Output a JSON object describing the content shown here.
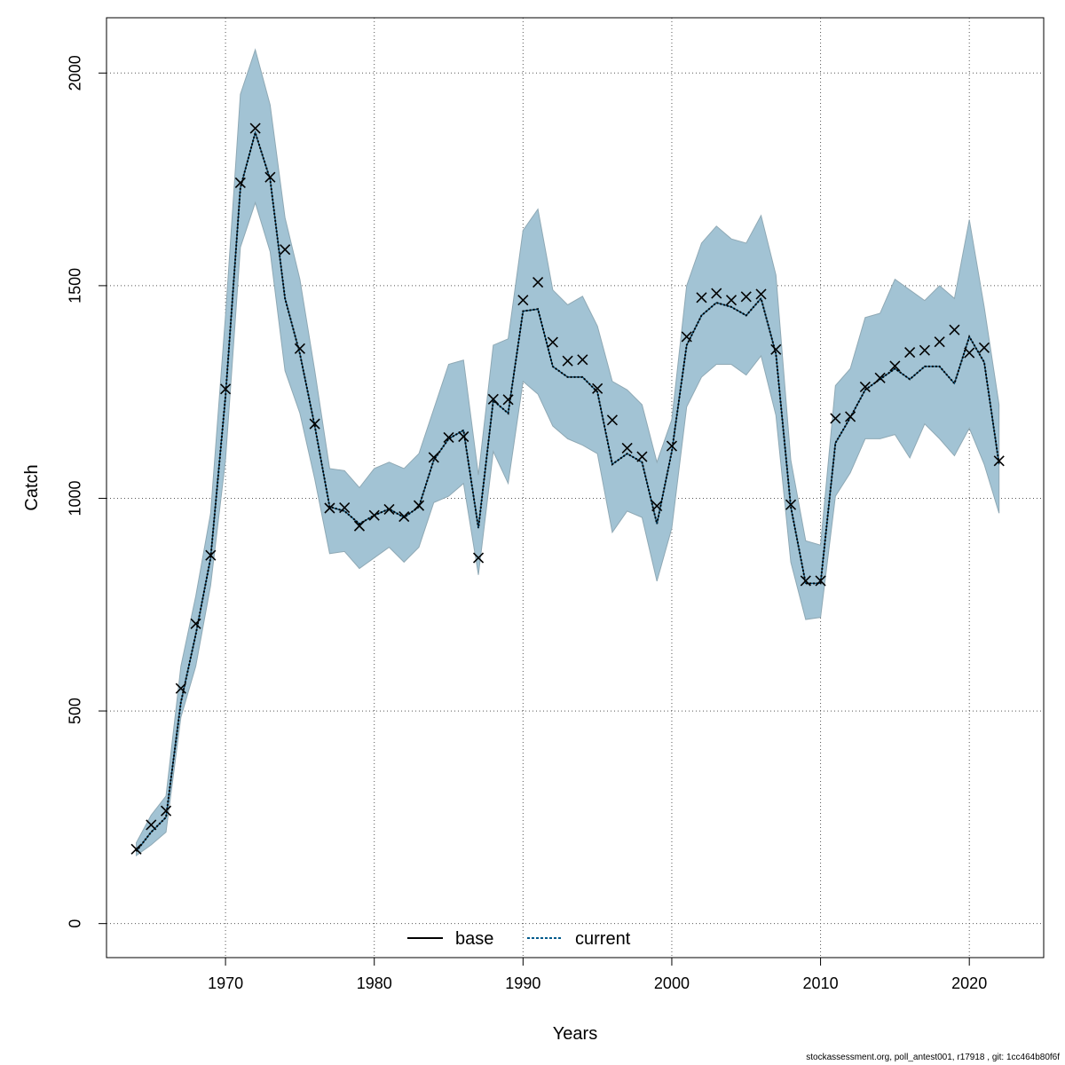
{
  "chart_data": {
    "type": "line",
    "title": "",
    "xlabel": "Years",
    "ylabel": "Catch",
    "xlim": [
      1962,
      2025
    ],
    "ylim": [
      -80,
      2130
    ],
    "x_ticks": [
      1970,
      1980,
      1990,
      2000,
      2010,
      2020
    ],
    "y_ticks": [
      0,
      500,
      1000,
      1500,
      2000
    ],
    "grid": true,
    "legend_position": "bottom-center",
    "colors": {
      "band": "#a2c3d4",
      "band_edge": "#8fa9b5",
      "current": "#005a8c",
      "base": "#000000",
      "observed": "#000000",
      "grid": "#555555"
    },
    "x": [
      1964,
      1965,
      1966,
      1967,
      1968,
      1969,
      1970,
      1971,
      1972,
      1973,
      1974,
      1975,
      1976,
      1977,
      1978,
      1979,
      1980,
      1981,
      1982,
      1983,
      1984,
      1985,
      1986,
      1987,
      1988,
      1989,
      1990,
      1991,
      1992,
      1993,
      1994,
      1995,
      1996,
      1997,
      1998,
      1999,
      2000,
      2001,
      2002,
      2003,
      2004,
      2005,
      2006,
      2007,
      2008,
      2009,
      2010,
      2011,
      2012,
      2013,
      2014,
      2015,
      2016,
      2017,
      2018,
      2019,
      2020,
      2021,
      2022
    ],
    "series": [
      {
        "name": "base",
        "style": "solid",
        "values": [
          170,
          215,
          250,
          520,
          680,
          860,
          1240,
          1730,
          1860,
          1750,
          1470,
          1340,
          1170,
          980,
          970,
          940,
          960,
          975,
          955,
          980,
          1090,
          1140,
          1160,
          930,
          1230,
          1200,
          1440,
          1445,
          1310,
          1285,
          1285,
          1250,
          1080,
          1105,
          1085,
          940,
          1110,
          1360,
          1430,
          1460,
          1450,
          1430,
          1470,
          1340,
          980,
          800,
          800,
          1130,
          1190,
          1255,
          1280,
          1305,
          1280,
          1310,
          1310,
          1270,
          1380,
          1320,
          1080
        ]
      },
      {
        "name": "current",
        "style": "dotted",
        "values": [
          170,
          215,
          250,
          520,
          680,
          860,
          1240,
          1730,
          1860,
          1750,
          1470,
          1340,
          1170,
          980,
          970,
          940,
          960,
          975,
          955,
          980,
          1090,
          1140,
          1160,
          930,
          1230,
          1200,
          1440,
          1445,
          1310,
          1285,
          1285,
          1250,
          1080,
          1105,
          1085,
          940,
          1110,
          1360,
          1430,
          1460,
          1450,
          1430,
          1470,
          1340,
          980,
          800,
          800,
          1130,
          1190,
          1255,
          1280,
          1305,
          1280,
          1310,
          1310,
          1270,
          1380,
          1320,
          1080
        ]
      },
      {
        "name": "observed",
        "style": "x-marker",
        "values": [
          175,
          232,
          265,
          553,
          705,
          866,
          1257,
          1742,
          1870,
          1755,
          1585,
          1352,
          1175,
          977,
          978,
          935,
          960,
          974,
          957,
          983,
          1096,
          1143,
          1145,
          860,
          1233,
          1232,
          1466,
          1508,
          1367,
          1323,
          1326,
          1258,
          1184,
          1118,
          1098,
          982,
          1123,
          1380,
          1472,
          1482,
          1466,
          1474,
          1480,
          1350,
          985,
          806,
          806,
          1188,
          1192,
          1262,
          1283,
          1311,
          1343,
          1348,
          1368,
          1396,
          1342,
          1354,
          1088
        ]
      }
    ],
    "band": {
      "upper": [
        190,
        255,
        300,
        605,
        770,
        965,
        1430,
        1950,
        2055,
        1925,
        1660,
        1515,
        1300,
        1070,
        1065,
        1025,
        1070,
        1085,
        1070,
        1105,
        1210,
        1315,
        1325,
        1055,
        1360,
        1375,
        1630,
        1680,
        1490,
        1455,
        1475,
        1405,
        1275,
        1255,
        1220,
        1085,
        1185,
        1500,
        1600,
        1640,
        1610,
        1600,
        1665,
        1525,
        1090,
        900,
        890,
        1265,
        1305,
        1425,
        1435,
        1515,
        1490,
        1465,
        1500,
        1470,
        1655,
        1450,
        1220
      ],
      "lower": [
        160,
        185,
        215,
        485,
        605,
        795,
        1090,
        1590,
        1695,
        1580,
        1300,
        1200,
        1045,
        870,
        875,
        835,
        860,
        885,
        850,
        885,
        990,
        1005,
        1035,
        820,
        1110,
        1035,
        1275,
        1245,
        1170,
        1140,
        1125,
        1105,
        920,
        970,
        955,
        805,
        930,
        1215,
        1285,
        1315,
        1315,
        1290,
        1335,
        1195,
        850,
        715,
        720,
        1005,
        1060,
        1140,
        1140,
        1150,
        1095,
        1175,
        1140,
        1100,
        1165,
        1080,
        965
      ]
    }
  },
  "footer": {
    "text": "stockassessment.org, poll_antest001, r17918 , git: 1cc464b80f6f"
  }
}
